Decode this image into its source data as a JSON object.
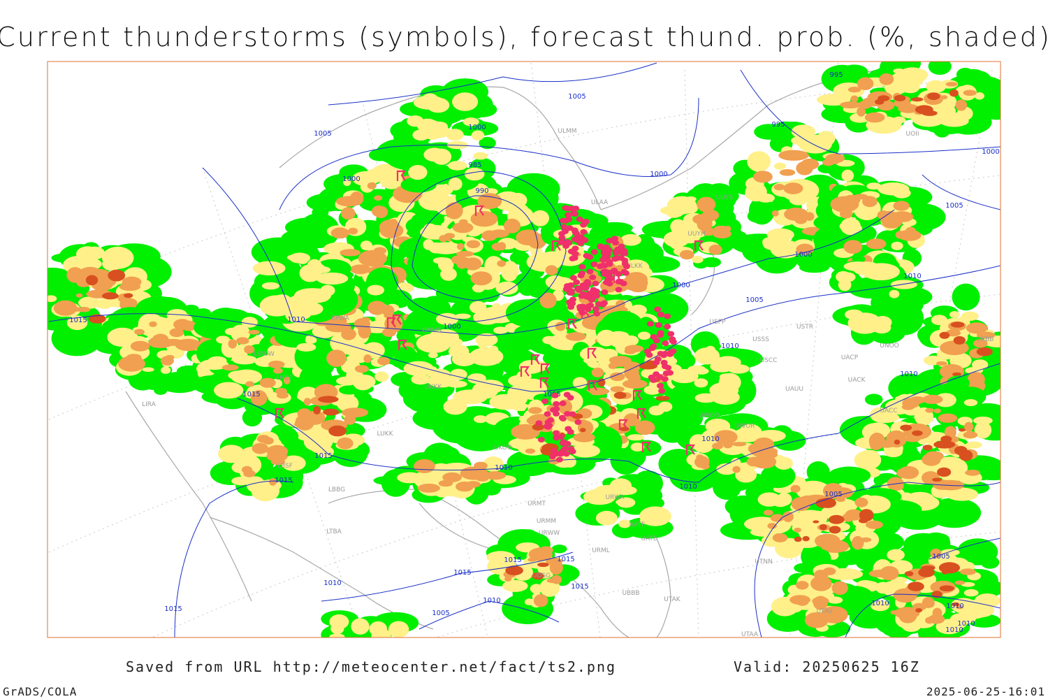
{
  "title": "Current thunderstorms (symbols), forecast thund. prob. (%, shaded)",
  "footer": {
    "source": "Saved from URL http://meteocenter.net/fact/ts2.png",
    "valid": "Valid: 20250625 16Z",
    "software": "GrADS/COLA",
    "timestamp": "2025-06-25-16:01"
  },
  "isobar_labels": [
    995,
    1005,
    1005,
    1000,
    995,
    1000,
    985,
    1000,
    990,
    1000,
    1005,
    995,
    1000,
    1000,
    1010,
    1005,
    1015,
    1010,
    1000,
    1010,
    1010,
    1005,
    1015,
    1010,
    1015,
    1010,
    1015,
    1010,
    1005,
    1015,
    1015,
    1015,
    1010,
    1015,
    1010,
    1005,
    1015,
    1010,
    1010,
    1010,
    1010,
    1005
  ],
  "station_labels": [
    "UUYS",
    "ULAA",
    "ULMM",
    "UOII",
    "UUYH",
    "ULKK",
    "USPP",
    "USSS",
    "USTR",
    "UNOO",
    "USCC",
    "UACP",
    "UACK",
    "UAUU",
    "UWOO",
    "UWOR",
    "UACC",
    "UKBB",
    "UTNN",
    "UTAA",
    "UTAV",
    "UATE",
    "UATF",
    "UBBB",
    "UTAK",
    "URML",
    "URWA",
    "URMT",
    "URMM",
    "URWW",
    "LIRA",
    "LHBP",
    "LOWW",
    "EPWA",
    "UMMS",
    "UKKK",
    "LBSF",
    "LBBG",
    "LTBA",
    "UKOO",
    "LUKK",
    "UDSG"
  ]
}
